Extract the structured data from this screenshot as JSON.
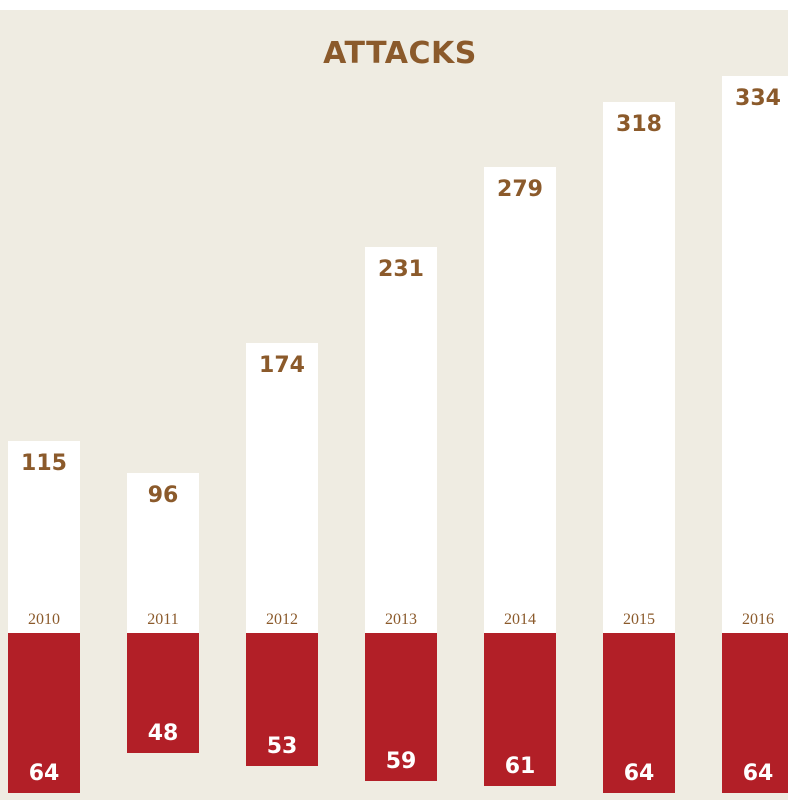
{
  "chart_data": {
    "type": "bar",
    "title": "ATTACKS",
    "categories": [
      "2010",
      "2011",
      "2012",
      "2013",
      "2014",
      "2015",
      "2016"
    ],
    "series": [
      {
        "name": "",
        "values": [
          115,
          96,
          174,
          231,
          279,
          318,
          334
        ]
      },
      {
        "name": "",
        "values": [
          64,
          48,
          53,
          59,
          61,
          64,
          64
        ]
      }
    ],
    "colors": {
      "upper": "#ffffff",
      "lower": "#b21f27",
      "text": "#8b5a2b",
      "background": "#efece2"
    }
  }
}
